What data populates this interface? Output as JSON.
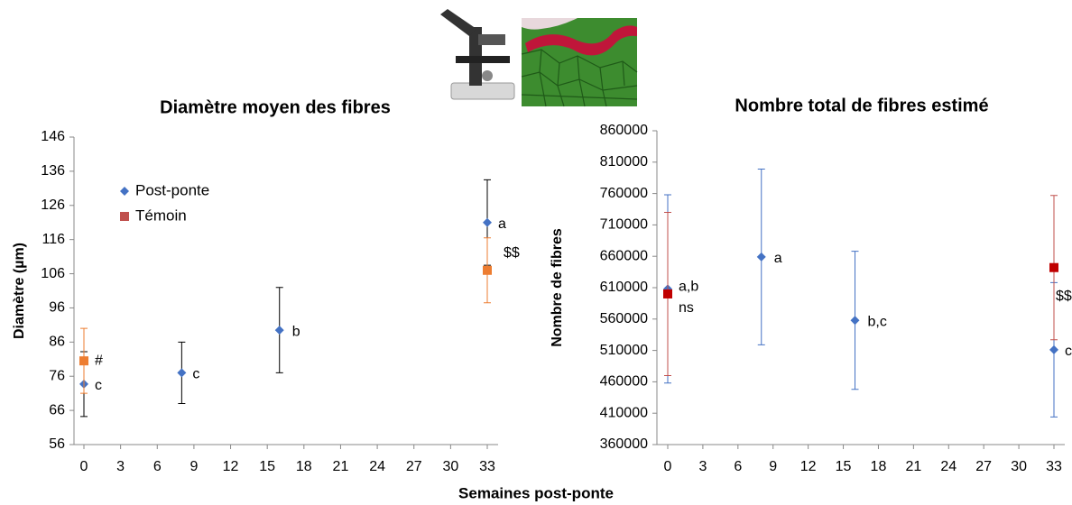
{
  "x_axis_title": "Semaines post-ponte",
  "chart_data": [
    {
      "type": "scatter",
      "title": "Diamètre moyen des fibres",
      "y_label": "Diamètre (µm)",
      "xlim": [
        0,
        33
      ],
      "xticks": [
        0,
        3,
        6,
        9,
        12,
        15,
        18,
        21,
        24,
        27,
        30,
        33
      ],
      "ylim": [
        56,
        146
      ],
      "yticks": [
        56,
        66,
        76,
        86,
        96,
        106,
        116,
        126,
        136,
        146
      ],
      "legend": "upper left",
      "series": [
        {
          "name": "Post-ponte",
          "color": "#4472c4",
          "legend_color": "#4472c4",
          "error_color": "#000000",
          "marker": "diamond",
          "x": [
            0,
            8,
            16,
            33
          ],
          "values": [
            73.7,
            77,
            89.5,
            121
          ],
          "errors": [
            9.5,
            9,
            12.5,
            12.5
          ],
          "point_labels": [
            "c",
            "c",
            "b",
            "a"
          ]
        },
        {
          "name": "Témoin",
          "color": "#ed7d31",
          "legend_color": "#c0504d",
          "error_color": "#ed7d31",
          "marker": "square",
          "x": [
            0,
            33
          ],
          "values": [
            80.5,
            107
          ],
          "errors": [
            9.5,
            9.5
          ],
          "point_labels": [
            "#",
            "$$"
          ]
        }
      ]
    },
    {
      "type": "scatter",
      "title": "Nombre total de fibres estimé",
      "y_label": "Nombre de fibres",
      "xlim": [
        0,
        33
      ],
      "xticks": [
        0,
        3,
        6,
        9,
        12,
        15,
        18,
        21,
        24,
        27,
        30,
        33
      ],
      "ylim": [
        360000,
        860000
      ],
      "yticks": [
        360000,
        410000,
        460000,
        510000,
        560000,
        610000,
        660000,
        710000,
        760000,
        810000,
        860000
      ],
      "legend": false,
      "series": [
        {
          "color": "#4472c4",
          "error_color": "#4472c4",
          "marker": "diamond",
          "x": [
            0,
            8,
            16,
            33
          ],
          "values": [
            608000,
            659000,
            558000,
            511000
          ],
          "errors": [
            150000,
            140000,
            110000,
            107000
          ],
          "point_labels": [
            "a,b",
            "a",
            "b,c",
            "c"
          ]
        },
        {
          "color": "#c00000",
          "error_color": "#c0504d",
          "marker": "square",
          "x": [
            0,
            33
          ],
          "values": [
            600000,
            642000
          ],
          "errors": [
            130000,
            115000
          ],
          "point_labels": [
            "ns",
            "$$"
          ]
        }
      ]
    }
  ]
}
